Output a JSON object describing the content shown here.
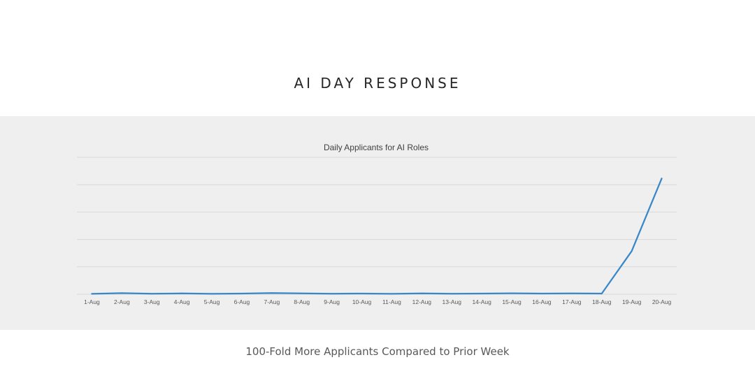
{
  "slide": {
    "title": "AI DAY RESPONSE",
    "caption": "100-Fold More Applicants Compared to Prior Week"
  },
  "colors": {
    "line": "#3a87c8",
    "gridline": "#d9d9d9",
    "band": "#efefef",
    "axis_text": "#595959"
  },
  "chart_data": {
    "type": "line",
    "title": "Daily Applicants for AI Roles",
    "xlabel": "",
    "ylabel": "",
    "categories": [
      "1-Aug",
      "2-Aug",
      "3-Aug",
      "4-Aug",
      "5-Aug",
      "6-Aug",
      "7-Aug",
      "8-Aug",
      "9-Aug",
      "10-Aug",
      "11-Aug",
      "12-Aug",
      "13-Aug",
      "14-Aug",
      "15-Aug",
      "16-Aug",
      "17-Aug",
      "18-Aug",
      "19-Aug",
      "20-Aug"
    ],
    "series": [
      {
        "values": [
          0.3,
          0.8,
          0.4,
          0.6,
          0.3,
          0.5,
          0.9,
          0.6,
          0.4,
          0.5,
          0.3,
          0.6,
          0.4,
          0.5,
          0.7,
          0.5,
          0.6,
          0.5,
          31.5,
          84.5
        ]
      }
    ],
    "ylim": [
      0,
      100
    ],
    "grid": true,
    "y_tick_labels_shown": false
  }
}
